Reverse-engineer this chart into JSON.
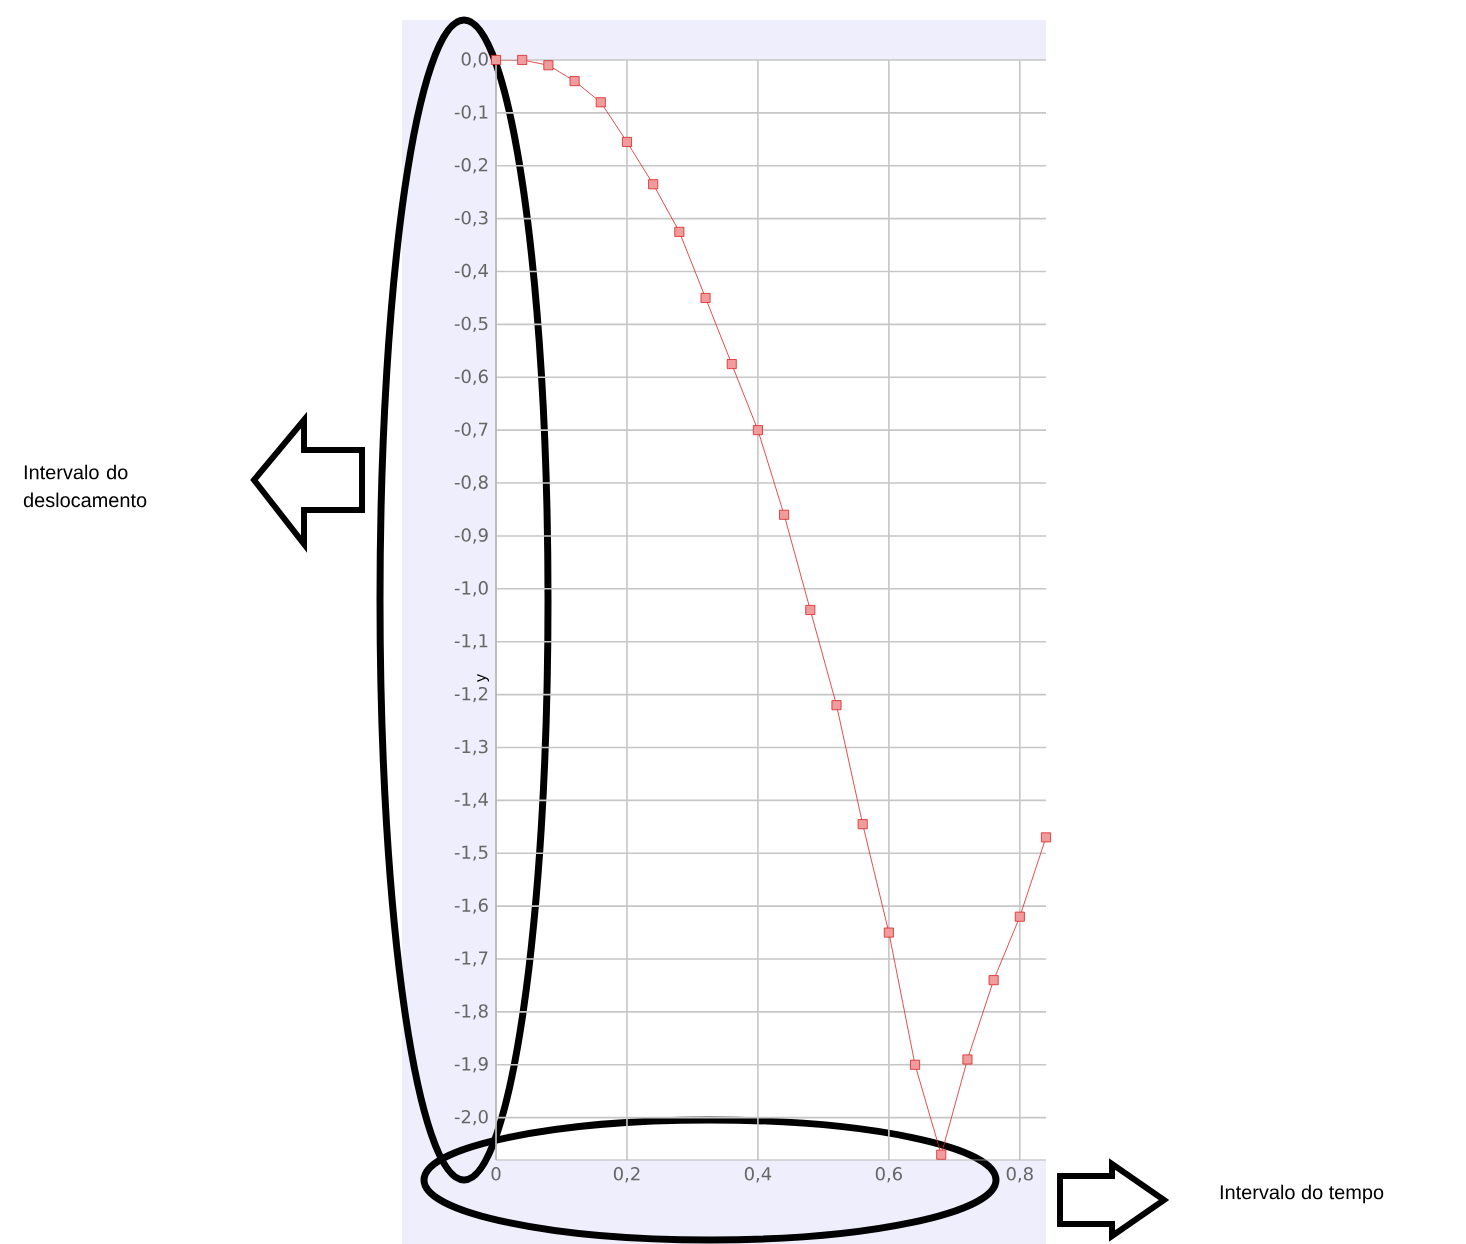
{
  "chart_data": {
    "type": "line",
    "ylabel": "y",
    "x": [
      0,
      0.04,
      0.08,
      0.12,
      0.16,
      0.2,
      0.24,
      0.28,
      0.32,
      0.36,
      0.4,
      0.44,
      0.48,
      0.52,
      0.56,
      0.6,
      0.64,
      0.68,
      0.72,
      0.76,
      0.8,
      0.84
    ],
    "series": [
      {
        "color": "#dd2222",
        "values": [
          0,
          0,
          -0.01,
          -0.04,
          -0.08,
          -0.155,
          -0.235,
          -0.325,
          -0.45,
          -0.575,
          -0.7,
          -0.86,
          -1.04,
          -1.22,
          -1.445,
          -1.65,
          -1.9,
          -2.07,
          -1.89,
          -1.74,
          -1.62,
          -1.47
        ]
      }
    ],
    "xlim": [
      0,
      0.84
    ],
    "ylim": [
      -2.08,
      0
    ],
    "xticks": [
      {
        "value": 0,
        "label": "0"
      },
      {
        "value": 0.2,
        "label": "0,2"
      },
      {
        "value": 0.4,
        "label": "0,4"
      },
      {
        "value": 0.6,
        "label": "0,6"
      },
      {
        "value": 0.8,
        "label": "0,8"
      }
    ],
    "yticks": [
      {
        "value": 0,
        "label": "0,0"
      },
      {
        "value": -0.1,
        "label": "-0,1"
      },
      {
        "value": -0.2,
        "label": "-0,2"
      },
      {
        "value": -0.3,
        "label": "-0,3"
      },
      {
        "value": -0.4,
        "label": "-0,4"
      },
      {
        "value": -0.5,
        "label": "-0,5"
      },
      {
        "value": -0.6,
        "label": "-0,6"
      },
      {
        "value": -0.7,
        "label": "-0,7"
      },
      {
        "value": -0.8,
        "label": "-0,8"
      },
      {
        "value": -0.9,
        "label": "-0,9"
      },
      {
        "value": -1.0,
        "label": "-1,0"
      },
      {
        "value": -1.1,
        "label": "-1,1"
      },
      {
        "value": -1.2,
        "label": "-1,2"
      },
      {
        "value": -1.3,
        "label": "-1,3"
      },
      {
        "value": -1.4,
        "label": "-1,4"
      },
      {
        "value": -1.5,
        "label": "-1,5"
      },
      {
        "value": -1.6,
        "label": "-1,6"
      },
      {
        "value": -1.7,
        "label": "-1,7"
      },
      {
        "value": -1.8,
        "label": "-1,8"
      },
      {
        "value": -1.9,
        "label": "-1,9"
      },
      {
        "value": -2.0,
        "label": "-2,0"
      }
    ],
    "grid": true,
    "marker": "square",
    "line_style": "solid",
    "annotations": [
      "Intervalo do deslocamento",
      "Intervalo do tempo"
    ]
  }
}
